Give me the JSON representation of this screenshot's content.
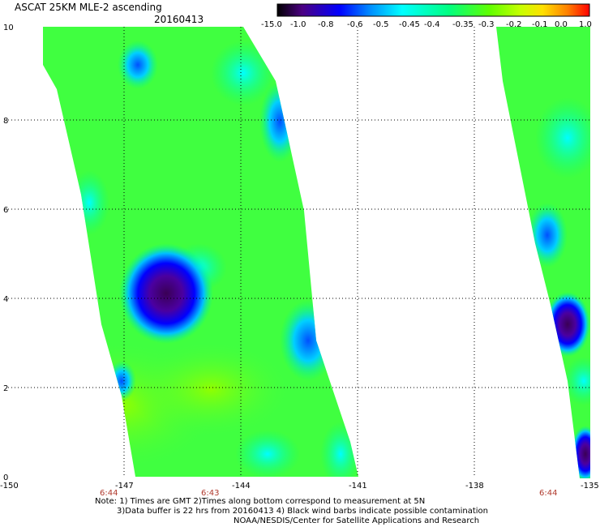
{
  "header": {
    "title": "ASCAT 25KM MLE-2 ascending",
    "date": "20160413"
  },
  "colorbar": {
    "labels": [
      "-15.0",
      "-1.0",
      "-0.8",
      "-0.6",
      "-0.5",
      "-0.45",
      "-0.4",
      "-0.35",
      "-0.3",
      "-0.2",
      "-0.1",
      "0.0",
      "1.0"
    ],
    "colors": [
      "#000000",
      "#4b0082",
      "#0000ff",
      "#0080ff",
      "#00ffff",
      "#40ffc0",
      "#00ff80",
      "#40ff40",
      "#80ff00",
      "#c0ff00",
      "#ffd700",
      "#ff8000",
      "#ff0000"
    ]
  },
  "axes": {
    "y_ticks": [
      "0",
      "2",
      "4",
      "6",
      "8",
      "10"
    ],
    "x_ticks": [
      "-150",
      "-147",
      "-144",
      "-141",
      "-138",
      "-135"
    ]
  },
  "times": [
    "6:44",
    "6:43",
    "6:44"
  ],
  "notes": {
    "line1": "Note: 1) Times are GMT 2)Times along bottom correspond to measurement at 5N",
    "line2": "3)Data buffer is 22 hrs from 20160413 4) Black wind barbs indicate possible contamination",
    "line3": "NOAA/NESDIS/Center for Satellite Applications and Research"
  }
}
